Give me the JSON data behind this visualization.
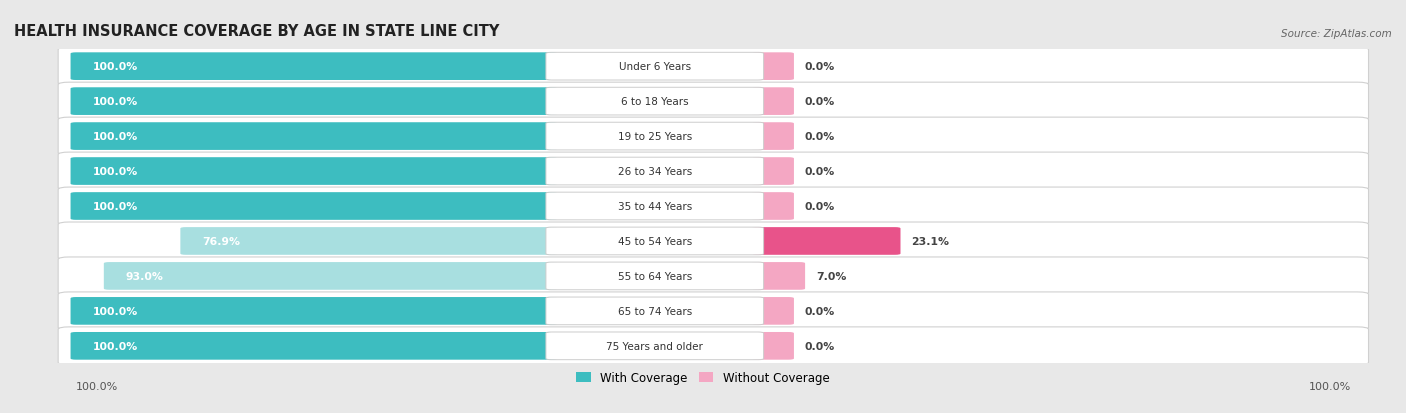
{
  "title": "HEALTH INSURANCE COVERAGE BY AGE IN STATE LINE CITY",
  "source": "Source: ZipAtlas.com",
  "categories": [
    "Under 6 Years",
    "6 to 18 Years",
    "19 to 25 Years",
    "26 to 34 Years",
    "35 to 44 Years",
    "45 to 54 Years",
    "55 to 64 Years",
    "65 to 74 Years",
    "75 Years and older"
  ],
  "with_coverage": [
    100.0,
    100.0,
    100.0,
    100.0,
    100.0,
    76.9,
    93.0,
    100.0,
    100.0
  ],
  "without_coverage": [
    0.0,
    0.0,
    0.0,
    0.0,
    0.0,
    23.1,
    7.0,
    0.0,
    0.0
  ],
  "color_with_full": "#3dbdc0",
  "color_with_partial": "#a8dfe0",
  "color_without_small": "#f4a7c3",
  "color_without_large": "#e8538a",
  "color_without_zero": "#f4a7c3",
  "bg_color": "#e8e8e8",
  "row_bg": "#f0f0f0",
  "figsize": [
    14.06,
    4.14
  ],
  "dpi": 100
}
